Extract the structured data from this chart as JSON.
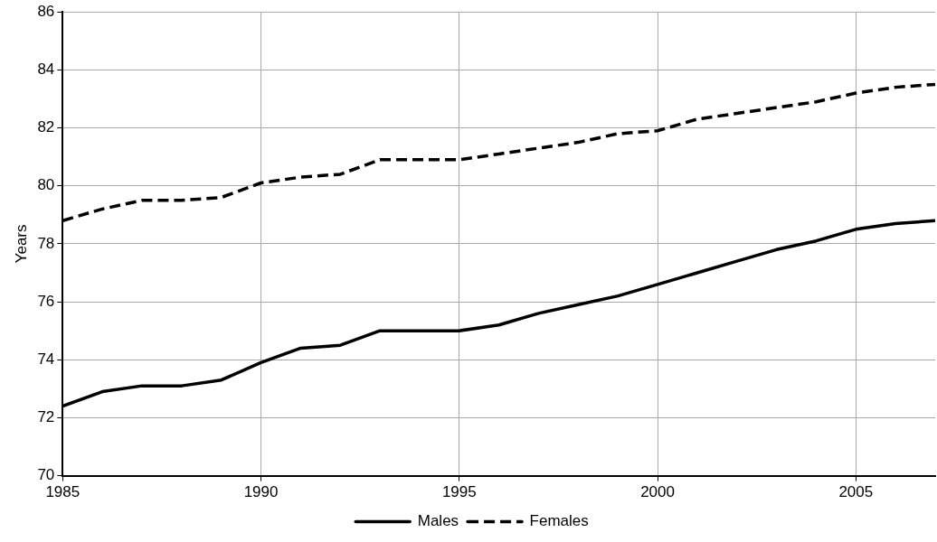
{
  "chart_data": {
    "type": "line",
    "ylabel": "Years",
    "x": [
      1985,
      1986,
      1987,
      1988,
      1989,
      1990,
      1991,
      1992,
      1993,
      1994,
      1995,
      1996,
      1997,
      1998,
      1999,
      2000,
      2001,
      2002,
      2003,
      2004,
      2005,
      2006,
      2007
    ],
    "series": [
      {
        "name": "Males",
        "color": "#000000",
        "line_style": "solid",
        "values": [
          72.4,
          72.9,
          73.1,
          73.1,
          73.3,
          73.9,
          74.4,
          74.5,
          75.0,
          75.0,
          75.0,
          75.2,
          75.6,
          75.9,
          76.2,
          76.6,
          77.0,
          77.4,
          77.8,
          78.1,
          78.5,
          78.7,
          78.8
        ]
      },
      {
        "name": "Females",
        "color": "#000000",
        "line_style": "dashed",
        "values": [
          78.8,
          79.2,
          79.5,
          79.5,
          79.6,
          80.1,
          80.3,
          80.4,
          80.9,
          80.9,
          80.9,
          81.1,
          81.3,
          81.5,
          81.8,
          81.9,
          82.3,
          82.5,
          82.7,
          82.9,
          83.2,
          83.4,
          83.5
        ]
      }
    ],
    "xlim": [
      1985,
      2007
    ],
    "xticks": [
      1985,
      1990,
      1995,
      2000,
      2005
    ],
    "ylim": [
      70,
      86
    ],
    "yticks": [
      70,
      72,
      74,
      76,
      78,
      80,
      82,
      84,
      86
    ],
    "grid": true,
    "legend": "bottom",
    "marker": "none"
  }
}
